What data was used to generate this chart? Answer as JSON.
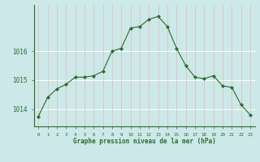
{
  "hours": [
    0,
    1,
    2,
    3,
    4,
    5,
    6,
    7,
    8,
    9,
    10,
    11,
    12,
    13,
    14,
    15,
    16,
    17,
    18,
    19,
    20,
    21,
    22,
    23
  ],
  "pressure": [
    1013.75,
    1014.4,
    1014.7,
    1014.85,
    1015.1,
    1015.1,
    1015.15,
    1015.3,
    1016.0,
    1016.1,
    1016.8,
    1016.85,
    1017.1,
    1017.2,
    1016.85,
    1016.1,
    1015.5,
    1015.1,
    1015.05,
    1015.15,
    1014.8,
    1014.75,
    1014.15,
    1013.8
  ],
  "line_color": "#2d6b2d",
  "marker": "D",
  "marker_size": 2.0,
  "bg_color": "#cce8e8",
  "grid_color_major": "#ffffff",
  "grid_color_minor": "#e8b8b8",
  "yticks": [
    1014,
    1015,
    1016
  ],
  "ylim": [
    1013.4,
    1017.6
  ],
  "xlabel": "Graphe pression niveau de la mer (hPa)",
  "tick_color": "#2d6b2d",
  "spine_color": "#2d6b2d",
  "linewidth": 0.8
}
